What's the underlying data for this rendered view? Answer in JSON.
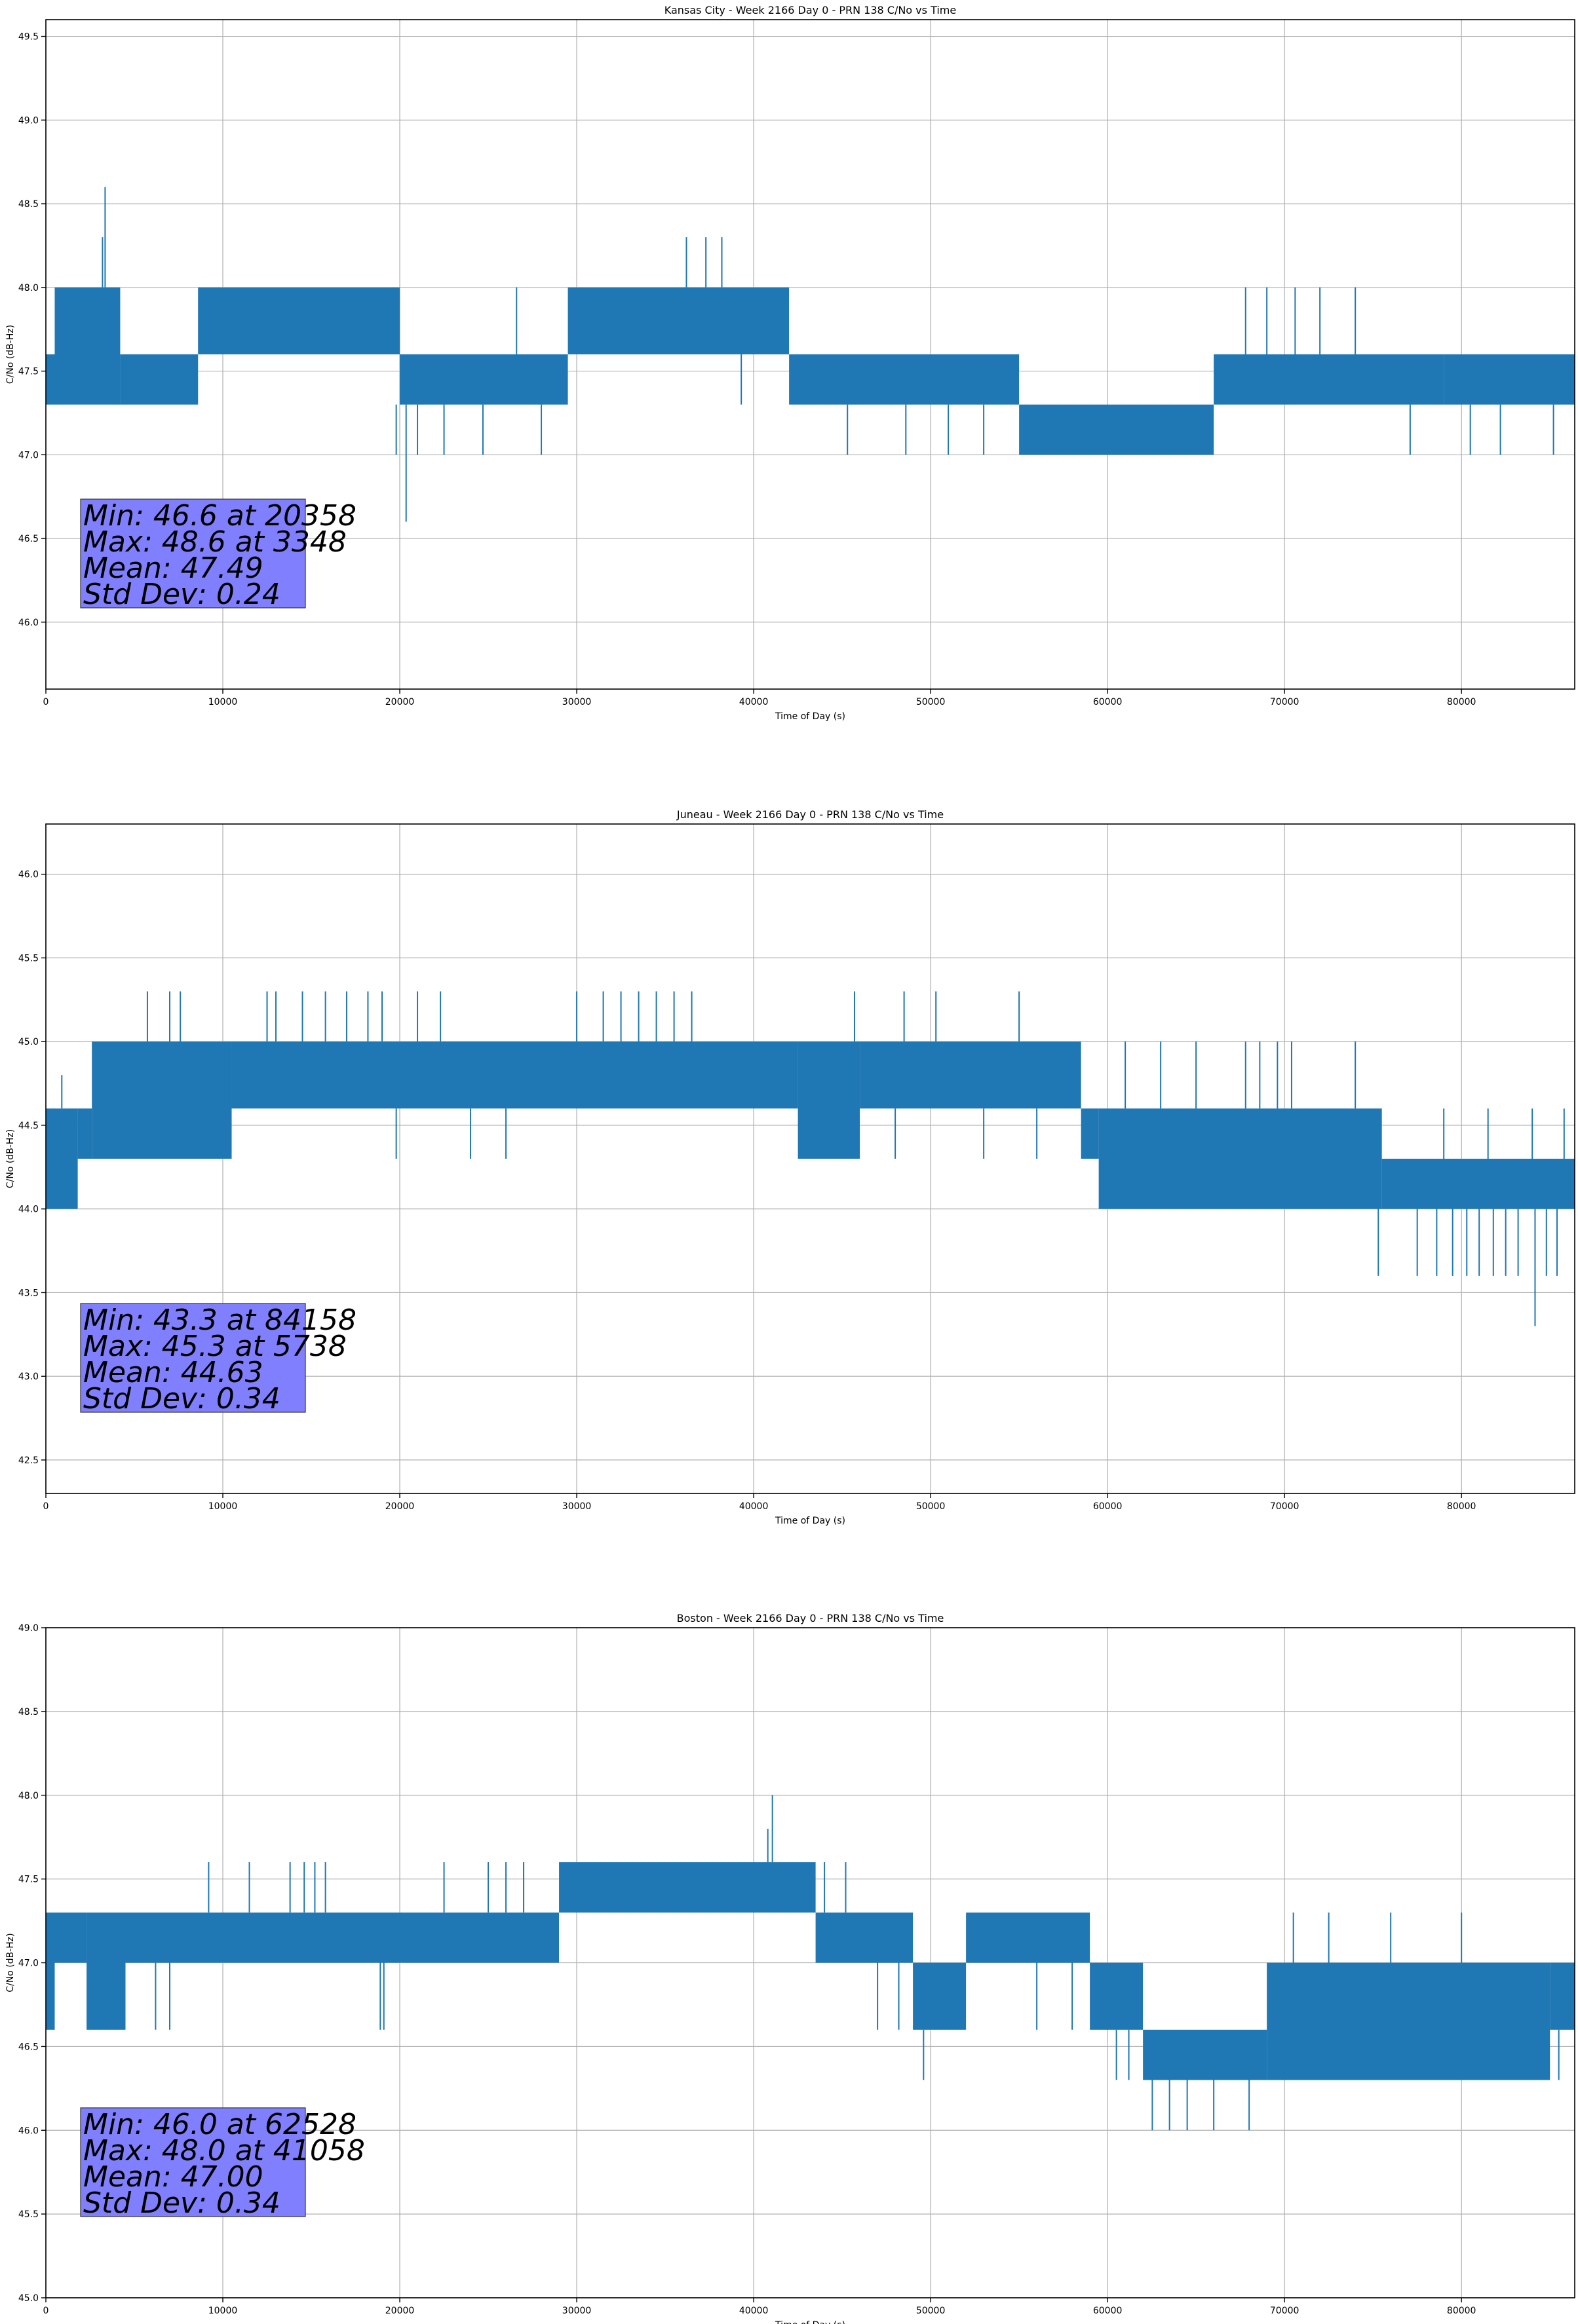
{
  "colors": {
    "series": "#1f77b4",
    "grid": "#b0b0b0",
    "stats_box": "#8080ff"
  },
  "chart_data": [
    {
      "type": "line",
      "title": "Kansas City - Week 2166 Day 0 - PRN 138 C/No vs Time",
      "xlabel": "Time of Day (s)",
      "ylabel": "C/No (dB-Hz)",
      "xlim": [
        0,
        86400
      ],
      "ylim": [
        45.6,
        49.6
      ],
      "xticks": [
        0,
        10000,
        20000,
        30000,
        40000,
        50000,
        60000,
        70000,
        80000
      ],
      "yticks": [
        46.0,
        46.5,
        47.0,
        47.5,
        48.0,
        48.5,
        49.0,
        49.5
      ],
      "grid": true,
      "stats": [
        "Min: 46.6 at 20358",
        "Max: 48.6 at 3348",
        "Mean: 47.49",
        "Std Dev: 0.24"
      ],
      "series": [
        {
          "segments": [
            {
              "x0": 0,
              "x1": 500,
              "low": 47.3,
              "high": 47.6
            },
            {
              "x0": 500,
              "x1": 4200,
              "low": 47.3,
              "high": 48.0
            },
            {
              "x0": 4200,
              "x1": 8600,
              "low": 47.3,
              "high": 47.6
            },
            {
              "x0": 8600,
              "x1": 20000,
              "low": 47.6,
              "high": 48.0
            },
            {
              "x0": 20000,
              "x1": 29500,
              "low": 47.3,
              "high": 47.6
            },
            {
              "x0": 29500,
              "x1": 42000,
              "low": 47.6,
              "high": 48.0
            },
            {
              "x0": 42000,
              "x1": 55000,
              "low": 47.3,
              "high": 47.6
            },
            {
              "x0": 55000,
              "x1": 66000,
              "low": 47.0,
              "high": 47.3
            },
            {
              "x0": 66000,
              "x1": 79000,
              "low": 47.3,
              "high": 47.6
            },
            {
              "x0": 79000,
              "x1": 86400,
              "low": 47.3,
              "high": 47.6
            }
          ],
          "spikes": [
            {
              "x": 3348,
              "y0": 48.0,
              "y1": 48.6
            },
            {
              "x": 3200,
              "y0": 48.0,
              "y1": 48.3
            },
            {
              "x": 36200,
              "y0": 48.0,
              "y1": 48.3
            },
            {
              "x": 37300,
              "y0": 48.0,
              "y1": 48.3
            },
            {
              "x": 38200,
              "y0": 48.0,
              "y1": 48.3
            },
            {
              "x": 20358,
              "y0": 47.3,
              "y1": 46.6
            },
            {
              "x": 19800,
              "y0": 47.3,
              "y1": 47.0
            },
            {
              "x": 21000,
              "y0": 47.3,
              "y1": 47.0
            },
            {
              "x": 22500,
              "y0": 47.3,
              "y1": 47.0
            },
            {
              "x": 24700,
              "y0": 47.3,
              "y1": 47.0
            },
            {
              "x": 26600,
              "y0": 47.6,
              "y1": 48.0
            },
            {
              "x": 28000,
              "y0": 47.3,
              "y1": 47.0
            },
            {
              "x": 39300,
              "y0": 47.6,
              "y1": 47.3
            },
            {
              "x": 45300,
              "y0": 47.3,
              "y1": 47.0
            },
            {
              "x": 48600,
              "y0": 47.3,
              "y1": 47.0
            },
            {
              "x": 51000,
              "y0": 47.3,
              "y1": 47.0
            },
            {
              "x": 53000,
              "y0": 47.3,
              "y1": 47.0
            },
            {
              "x": 67800,
              "y0": 47.6,
              "y1": 48.0
            },
            {
              "x": 69000,
              "y0": 47.6,
              "y1": 48.0
            },
            {
              "x": 70600,
              "y0": 47.6,
              "y1": 48.0
            },
            {
              "x": 72000,
              "y0": 47.6,
              "y1": 48.0
            },
            {
              "x": 74000,
              "y0": 47.6,
              "y1": 48.0
            },
            {
              "x": 77100,
              "y0": 47.3,
              "y1": 47.0
            },
            {
              "x": 80500,
              "y0": 47.3,
              "y1": 47.0
            },
            {
              "x": 82200,
              "y0": 47.3,
              "y1": 47.0
            },
            {
              "x": 85200,
              "y0": 47.3,
              "y1": 47.0
            }
          ]
        }
      ]
    },
    {
      "type": "line",
      "title": "Juneau - Week 2166 Day 0 - PRN 138 C/No vs Time",
      "xlabel": "Time of Day (s)",
      "ylabel": "C/No (dB-Hz)",
      "xlim": [
        0,
        86400
      ],
      "ylim": [
        42.3,
        46.3
      ],
      "xticks": [
        0,
        10000,
        20000,
        30000,
        40000,
        50000,
        60000,
        70000,
        80000
      ],
      "yticks": [
        42.5,
        43.0,
        43.5,
        44.0,
        44.5,
        45.0,
        45.5,
        46.0
      ],
      "grid": true,
      "stats": [
        "Min: 43.3 at 84158",
        "Max: 45.3 at 5738",
        "Mean: 44.63",
        "Std Dev: 0.34"
      ],
      "series": [
        {
          "segments": [
            {
              "x0": 0,
              "x1": 1800,
              "low": 44.0,
              "high": 44.6
            },
            {
              "x0": 1800,
              "x1": 2600,
              "low": 44.3,
              "high": 44.6
            },
            {
              "x0": 2600,
              "x1": 10500,
              "low": 44.3,
              "high": 45.0
            },
            {
              "x0": 10500,
              "x1": 42500,
              "low": 44.6,
              "high": 45.0
            },
            {
              "x0": 42500,
              "x1": 46000,
              "low": 44.3,
              "high": 45.0
            },
            {
              "x0": 46000,
              "x1": 58500,
              "low": 44.6,
              "high": 45.0
            },
            {
              "x0": 58500,
              "x1": 59500,
              "low": 44.3,
              "high": 44.6
            },
            {
              "x0": 59500,
              "x1": 75500,
              "low": 44.0,
              "high": 44.6
            },
            {
              "x0": 75500,
              "x1": 86400,
              "low": 44.0,
              "high": 44.3
            }
          ],
          "spikes": [
            {
              "x": 900,
              "y0": 44.6,
              "y1": 44.8
            },
            {
              "x": 5738,
              "y0": 45.0,
              "y1": 45.3
            },
            {
              "x": 7000,
              "y0": 45.0,
              "y1": 45.3
            },
            {
              "x": 7600,
              "y0": 45.0,
              "y1": 45.3
            },
            {
              "x": 12500,
              "y0": 45.0,
              "y1": 45.3
            },
            {
              "x": 13000,
              "y0": 45.0,
              "y1": 45.3
            },
            {
              "x": 14500,
              "y0": 45.0,
              "y1": 45.3
            },
            {
              "x": 15800,
              "y0": 45.0,
              "y1": 45.3
            },
            {
              "x": 17000,
              "y0": 45.0,
              "y1": 45.3
            },
            {
              "x": 18200,
              "y0": 45.0,
              "y1": 45.3
            },
            {
              "x": 19000,
              "y0": 45.0,
              "y1": 45.3
            },
            {
              "x": 21000,
              "y0": 45.0,
              "y1": 45.3
            },
            {
              "x": 22300,
              "y0": 45.0,
              "y1": 45.3
            },
            {
              "x": 19800,
              "y0": 44.6,
              "y1": 44.3
            },
            {
              "x": 24000,
              "y0": 44.6,
              "y1": 44.3
            },
            {
              "x": 26000,
              "y0": 44.6,
              "y1": 44.3
            },
            {
              "x": 30000,
              "y0": 45.0,
              "y1": 45.3
            },
            {
              "x": 31500,
              "y0": 45.0,
              "y1": 45.3
            },
            {
              "x": 32500,
              "y0": 45.0,
              "y1": 45.3
            },
            {
              "x": 33500,
              "y0": 45.0,
              "y1": 45.3
            },
            {
              "x": 34500,
              "y0": 45.0,
              "y1": 45.3
            },
            {
              "x": 35500,
              "y0": 45.0,
              "y1": 45.3
            },
            {
              "x": 36500,
              "y0": 45.0,
              "y1": 45.3
            },
            {
              "x": 45700,
              "y0": 45.0,
              "y1": 45.3
            },
            {
              "x": 48500,
              "y0": 45.0,
              "y1": 45.3
            },
            {
              "x": 50300,
              "y0": 45.0,
              "y1": 45.3
            },
            {
              "x": 55000,
              "y0": 45.0,
              "y1": 45.3
            },
            {
              "x": 48000,
              "y0": 44.6,
              "y1": 44.3
            },
            {
              "x": 53000,
              "y0": 44.6,
              "y1": 44.3
            },
            {
              "x": 56000,
              "y0": 44.6,
              "y1": 44.3
            },
            {
              "x": 61000,
              "y0": 44.6,
              "y1": 45.0
            },
            {
              "x": 63000,
              "y0": 44.6,
              "y1": 45.0
            },
            {
              "x": 65000,
              "y0": 44.6,
              "y1": 45.0
            },
            {
              "x": 67800,
              "y0": 44.6,
              "y1": 45.0
            },
            {
              "x": 68600,
              "y0": 44.6,
              "y1": 45.0
            },
            {
              "x": 69600,
              "y0": 44.6,
              "y1": 45.0
            },
            {
              "x": 70400,
              "y0": 44.6,
              "y1": 45.0
            },
            {
              "x": 74000,
              "y0": 44.6,
              "y1": 45.0
            },
            {
              "x": 75300,
              "y0": 44.0,
              "y1": 43.6
            },
            {
              "x": 77500,
              "y0": 44.0,
              "y1": 43.6
            },
            {
              "x": 78600,
              "y0": 44.0,
              "y1": 43.6
            },
            {
              "x": 79500,
              "y0": 44.0,
              "y1": 43.6
            },
            {
              "x": 80300,
              "y0": 44.0,
              "y1": 43.6
            },
            {
              "x": 81000,
              "y0": 44.0,
              "y1": 43.6
            },
            {
              "x": 81800,
              "y0": 44.0,
              "y1": 43.6
            },
            {
              "x": 82500,
              "y0": 44.0,
              "y1": 43.6
            },
            {
              "x": 83200,
              "y0": 44.0,
              "y1": 43.6
            },
            {
              "x": 84158,
              "y0": 44.0,
              "y1": 43.3
            },
            {
              "x": 84800,
              "y0": 44.0,
              "y1": 43.6
            },
            {
              "x": 85400,
              "y0": 44.0,
              "y1": 43.6
            },
            {
              "x": 79000,
              "y0": 44.3,
              "y1": 44.6
            },
            {
              "x": 81500,
              "y0": 44.3,
              "y1": 44.6
            },
            {
              "x": 84000,
              "y0": 44.3,
              "y1": 44.6
            },
            {
              "x": 85800,
              "y0": 44.3,
              "y1": 44.6
            }
          ]
        }
      ]
    },
    {
      "type": "line",
      "title": "Boston - Week 2166 Day 0 - PRN 138 C/No vs Time",
      "xlabel": "Time of Day (s)",
      "ylabel": "C/No (dB-Hz)",
      "xlim": [
        0,
        86400
      ],
      "ylim": [
        45.0,
        49.0
      ],
      "xticks": [
        0,
        10000,
        20000,
        30000,
        40000,
        50000,
        60000,
        70000,
        80000
      ],
      "yticks": [
        45.0,
        45.5,
        46.0,
        46.5,
        47.0,
        47.5,
        48.0,
        48.5,
        49.0
      ],
      "grid": true,
      "stats": [
        "Min: 46.0 at 62528",
        "Max: 48.0 at 41058",
        "Mean: 47.00",
        "Std Dev: 0.34"
      ],
      "series": [
        {
          "segments": [
            {
              "x0": 0,
              "x1": 500,
              "low": 46.6,
              "high": 47.3
            },
            {
              "x0": 500,
              "x1": 2300,
              "low": 47.0,
              "high": 47.3
            },
            {
              "x0": 2300,
              "x1": 4500,
              "low": 46.6,
              "high": 47.3
            },
            {
              "x0": 4500,
              "x1": 29000,
              "low": 47.0,
              "high": 47.3
            },
            {
              "x0": 29000,
              "x1": 43500,
              "low": 47.3,
              "high": 47.6
            },
            {
              "x0": 43500,
              "x1": 49000,
              "low": 47.0,
              "high": 47.3
            },
            {
              "x0": 49000,
              "x1": 52000,
              "low": 46.6,
              "high": 47.0
            },
            {
              "x0": 52000,
              "x1": 59000,
              "low": 47.0,
              "high": 47.3
            },
            {
              "x0": 59000,
              "x1": 62000,
              "low": 46.6,
              "high": 47.0
            },
            {
              "x0": 62000,
              "x1": 69000,
              "low": 46.3,
              "high": 46.6
            },
            {
              "x0": 69000,
              "x1": 85000,
              "low": 46.3,
              "high": 47.0
            },
            {
              "x0": 85000,
              "x1": 86400,
              "low": 46.6,
              "high": 47.0
            }
          ],
          "spikes": [
            {
              "x": 41058,
              "y0": 47.6,
              "y1": 48.0
            },
            {
              "x": 40800,
              "y0": 47.6,
              "y1": 47.8
            },
            {
              "x": 9200,
              "y0": 47.3,
              "y1": 47.6
            },
            {
              "x": 11500,
              "y0": 47.3,
              "y1": 47.6
            },
            {
              "x": 13800,
              "y0": 47.3,
              "y1": 47.6
            },
            {
              "x": 14600,
              "y0": 47.3,
              "y1": 47.6
            },
            {
              "x": 15200,
              "y0": 47.3,
              "y1": 47.6
            },
            {
              "x": 15800,
              "y0": 47.3,
              "y1": 47.6
            },
            {
              "x": 22500,
              "y0": 47.3,
              "y1": 47.6
            },
            {
              "x": 25000,
              "y0": 47.3,
              "y1": 47.6
            },
            {
              "x": 26000,
              "y0": 47.3,
              "y1": 47.6
            },
            {
              "x": 27000,
              "y0": 47.3,
              "y1": 47.6
            },
            {
              "x": 44000,
              "y0": 47.3,
              "y1": 47.6
            },
            {
              "x": 45200,
              "y0": 47.3,
              "y1": 47.6
            },
            {
              "x": 6200,
              "y0": 47.0,
              "y1": 46.6
            },
            {
              "x": 7000,
              "y0": 47.0,
              "y1": 46.6
            },
            {
              "x": 18900,
              "y0": 47.0,
              "y1": 46.6
            },
            {
              "x": 19100,
              "y0": 47.0,
              "y1": 46.6
            },
            {
              "x": 49600,
              "y0": 46.6,
              "y1": 46.3
            },
            {
              "x": 47000,
              "y0": 47.0,
              "y1": 46.6
            },
            {
              "x": 48200,
              "y0": 47.0,
              "y1": 46.6
            },
            {
              "x": 56000,
              "y0": 47.0,
              "y1": 46.6
            },
            {
              "x": 58000,
              "y0": 47.0,
              "y1": 46.6
            },
            {
              "x": 60500,
              "y0": 46.6,
              "y1": 46.3
            },
            {
              "x": 61200,
              "y0": 46.6,
              "y1": 46.3
            },
            {
              "x": 62528,
              "y0": 46.3,
              "y1": 46.0
            },
            {
              "x": 63500,
              "y0": 46.3,
              "y1": 46.0
            },
            {
              "x": 64500,
              "y0": 46.3,
              "y1": 46.0
            },
            {
              "x": 66000,
              "y0": 46.3,
              "y1": 46.0
            },
            {
              "x": 68000,
              "y0": 46.3,
              "y1": 46.0
            },
            {
              "x": 70500,
              "y0": 47.0,
              "y1": 47.3
            },
            {
              "x": 72500,
              "y0": 47.0,
              "y1": 47.3
            },
            {
              "x": 76000,
              "y0": 47.0,
              "y1": 47.3
            },
            {
              "x": 80000,
              "y0": 47.0,
              "y1": 47.3
            },
            {
              "x": 85500,
              "y0": 46.6,
              "y1": 46.3
            }
          ]
        }
      ]
    }
  ]
}
